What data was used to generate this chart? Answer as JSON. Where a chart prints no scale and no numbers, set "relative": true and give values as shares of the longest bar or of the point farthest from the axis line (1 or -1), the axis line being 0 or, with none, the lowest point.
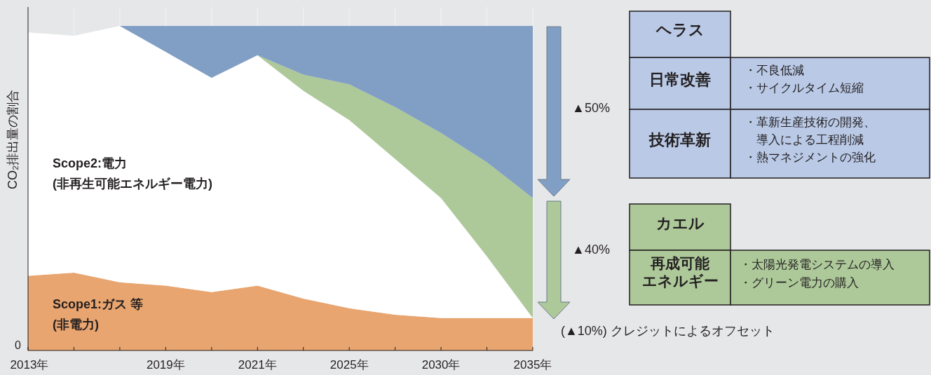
{
  "chart_data": {
    "type": "area",
    "stacked": true,
    "relative": true,
    "ylabel": "CO₂排出量の割合",
    "grid": "x",
    "legend": false,
    "categories": [
      "2013年",
      null,
      null,
      "2019年",
      null,
      "2021年",
      null,
      "2025年",
      null,
      "2030年",
      null,
      "2035年"
    ],
    "series": [
      {
        "name": "Scope1:ガス 等\n(非電力)",
        "color": "#e9a56f",
        "values": [
          0.23,
          0.24,
          0.21,
          0.2,
          0.18,
          0.2,
          0.16,
          0.13,
          0.11,
          0.1,
          0.1,
          0.1
        ]
      },
      {
        "name": "Scope2:電力\n(非再生可能エネルギー電力)",
        "color": "#ffffff",
        "values": [
          0.75,
          0.73,
          0.79,
          0.72,
          0.66,
          0.71,
          0.64,
          0.58,
          0.48,
          0.37,
          0.19,
          0
        ]
      },
      {
        "color": "#adc99a",
        "values": [
          null,
          null,
          null,
          null,
          null,
          0,
          0.05,
          0.11,
          0.16,
          0.2,
          0.29,
          0.37
        ]
      },
      {
        "color": "#819fc5",
        "values": [
          null,
          null,
          0,
          0.08,
          0.16,
          0.09,
          0.15,
          0.18,
          0.25,
          0.33,
          0.42,
          0.53
        ]
      }
    ],
    "annotations": [
      "0",
      "▲50%",
      "▲40%",
      "(▲10%) クレジットによるオフセット",
      "ヘラス",
      "日常改善",
      "・不良低減",
      "・サイクルタイム短縮",
      "技術革新",
      "・革新生産技術の開発、導入による工程削減",
      "・熱マネジメントの強化",
      "カエル",
      "再成可能エネルギー",
      "・太陽光発電システムの導入",
      "・グリーン電力の購入"
    ]
  }
}
